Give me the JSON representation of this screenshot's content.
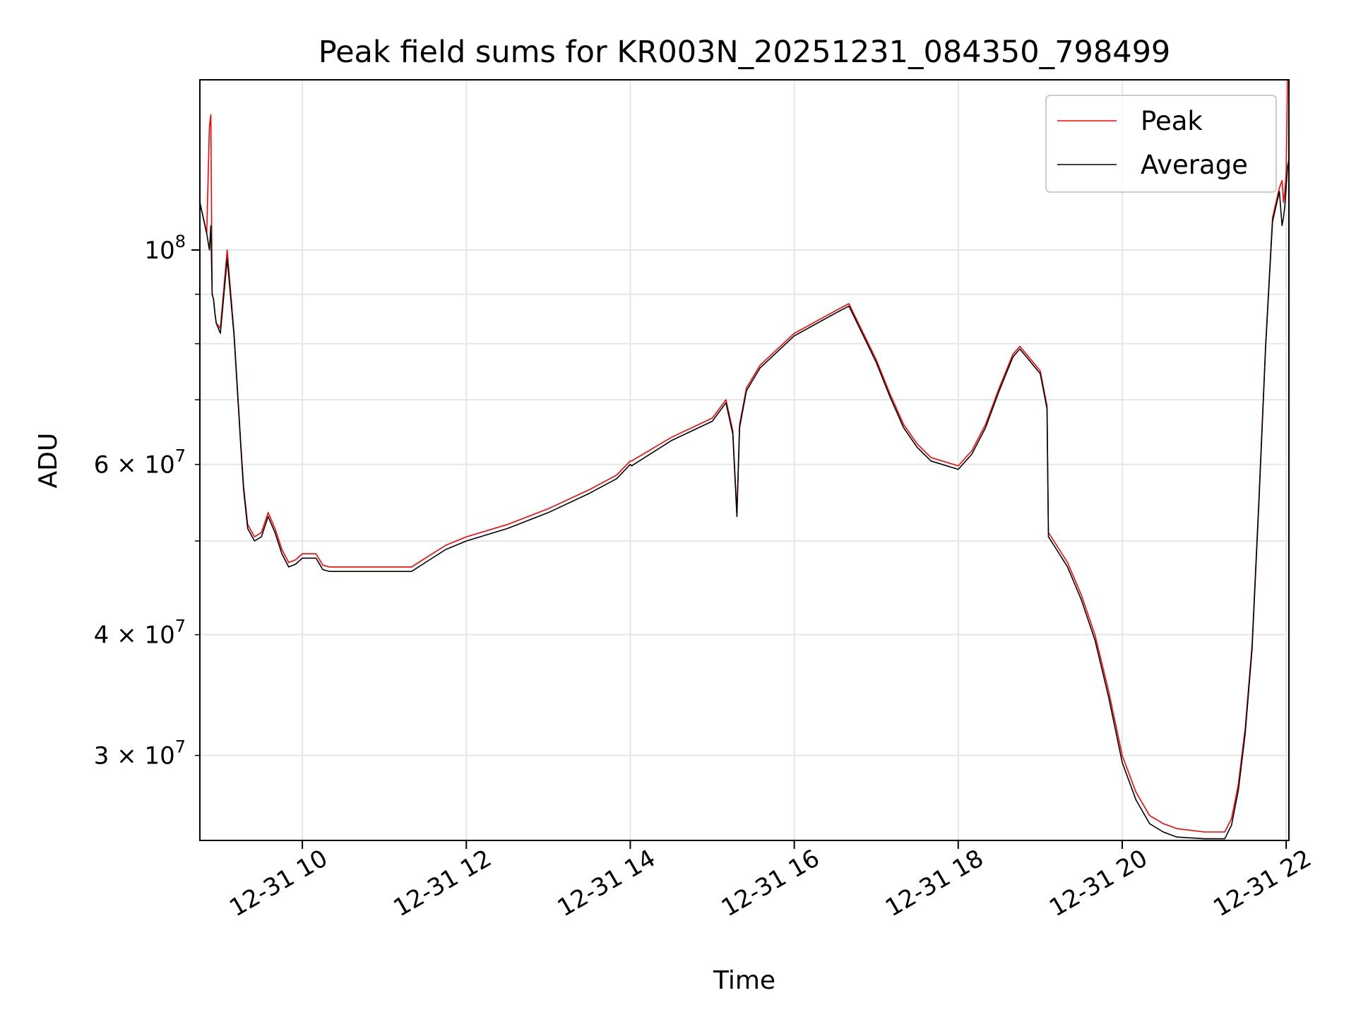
{
  "chart_data": {
    "type": "line",
    "title": "Peak field sums for KR003N_20251231_084350_798499",
    "xlabel": "Time",
    "ylabel": "ADU",
    "y_scale": "log",
    "xlim": [
      "2025-12-31 08:45",
      "2025-12-31 22:02"
    ],
    "ylim": [
      24500000,
      150000000
    ],
    "grid": true,
    "legend": "top-right",
    "x_ticks": [
      {
        "value": "2025-12-31 10:00",
        "label": "12-31 10"
      },
      {
        "value": "2025-12-31 12:00",
        "label": "12-31 12"
      },
      {
        "value": "2025-12-31 14:00",
        "label": "12-31 14"
      },
      {
        "value": "2025-12-31 16:00",
        "label": "12-31 16"
      },
      {
        "value": "2025-12-31 18:00",
        "label": "12-31 18"
      },
      {
        "value": "2025-12-31 20:00",
        "label": "12-31 20"
      },
      {
        "value": "2025-12-31 22:00",
        "label": "12-31 22"
      }
    ],
    "y_ticks_major": [
      {
        "value": 100000000,
        "base": "10",
        "exp": "8"
      }
    ],
    "y_ticks_minor_labeled": [
      {
        "value": 60000000,
        "mant": "6",
        "base": "10",
        "exp": "7"
      },
      {
        "value": 40000000,
        "mant": "4",
        "base": "10",
        "exp": "7"
      },
      {
        "value": 30000000,
        "mant": "3",
        "base": "10",
        "exp": "7"
      }
    ],
    "y_ticks_minor_unlabeled": [
      50000000,
      70000000,
      80000000,
      90000000
    ],
    "series": [
      {
        "name": "Peak",
        "color": "#ff0000",
        "x": [
          "2025-12-31 08:45",
          "2025-12-31 08:50",
          "2025-12-31 08:52",
          "2025-12-31 08:53",
          "2025-12-31 08:54",
          "2025-12-31 08:55",
          "2025-12-31 08:56",
          "2025-12-31 08:57",
          "2025-12-31 09:00",
          "2025-12-31 09:05",
          "2025-12-31 09:10",
          "2025-12-31 09:13",
          "2025-12-31 09:15",
          "2025-12-31 09:17",
          "2025-12-31 09:20",
          "2025-12-31 09:25",
          "2025-12-31 09:30",
          "2025-12-31 09:35",
          "2025-12-31 09:40",
          "2025-12-31 09:45",
          "2025-12-31 09:50",
          "2025-12-31 09:55",
          "2025-12-31 10:00",
          "2025-12-31 10:10",
          "2025-12-31 10:15",
          "2025-12-31 10:20",
          "2025-12-31 10:25",
          "2025-12-31 10:30",
          "2025-12-31 11:00",
          "2025-12-31 11:20",
          "2025-12-31 11:30",
          "2025-12-31 11:45",
          "2025-12-31 12:00",
          "2025-12-31 12:30",
          "2025-12-31 13:00",
          "2025-12-31 13:30",
          "2025-12-31 13:50",
          "2025-12-31 14:00",
          "2025-12-31 14:01",
          "2025-12-31 14:30",
          "2025-12-31 15:00",
          "2025-12-31 15:10",
          "2025-12-31 15:15",
          "2025-12-31 15:18",
          "2025-12-31 15:20",
          "2025-12-31 15:25",
          "2025-12-31 15:35",
          "2025-12-31 16:00",
          "2025-12-31 16:30",
          "2025-12-31 16:40",
          "2025-12-31 17:00",
          "2025-12-31 17:10",
          "2025-12-31 17:20",
          "2025-12-31 17:30",
          "2025-12-31 17:40",
          "2025-12-31 18:00",
          "2025-12-31 18:10",
          "2025-12-31 18:20",
          "2025-12-31 18:30",
          "2025-12-31 18:40",
          "2025-12-31 18:45",
          "2025-12-31 18:50",
          "2025-12-31 19:00",
          "2025-12-31 19:05",
          "2025-12-31 19:06",
          "2025-12-31 19:10",
          "2025-12-31 19:20",
          "2025-12-31 19:30",
          "2025-12-31 19:40",
          "2025-12-31 19:50",
          "2025-12-31 20:00",
          "2025-12-31 20:10",
          "2025-12-31 20:20",
          "2025-12-31 20:30",
          "2025-12-31 20:40",
          "2025-12-31 21:00",
          "2025-12-31 21:15",
          "2025-12-31 21:20",
          "2025-12-31 21:25",
          "2025-12-31 21:30",
          "2025-12-31 21:35",
          "2025-12-31 21:40",
          "2025-12-31 21:45",
          "2025-12-31 21:50",
          "2025-12-31 21:55",
          "2025-12-31 21:57",
          "2025-12-31 21:58",
          "2025-12-31 21:59",
          "2025-12-31 22:00",
          "2025-12-31 22:01",
          "2025-12-31 22:02"
        ],
        "values": [
          112000000,
          104000000,
          134000000,
          138000000,
          90000000,
          89000000,
          86000000,
          84000000,
          83000000,
          100000000,
          82000000,
          70000000,
          63000000,
          57000000,
          52000000,
          50500000,
          51000000,
          53500000,
          51500000,
          49000000,
          47500000,
          47800000,
          48500000,
          48500000,
          47200000,
          47000000,
          47000000,
          47000000,
          47000000,
          47000000,
          48000000,
          49500000,
          50500000,
          52000000,
          54000000,
          56500000,
          58500000,
          60500000,
          60500000,
          64000000,
          67000000,
          70000000,
          65000000,
          53500000,
          66000000,
          72000000,
          76000000,
          82000000,
          86500000,
          88000000,
          77000000,
          71000000,
          66000000,
          63000000,
          61000000,
          59800000,
          62000000,
          66000000,
          72000000,
          78000000,
          79500000,
          78000000,
          75000000,
          69000000,
          51000000,
          50000000,
          47500000,
          44000000,
          40000000,
          35000000,
          30000000,
          27500000,
          26000000,
          25500000,
          25200000,
          25000000,
          25000000,
          25800000,
          28000000,
          32000000,
          39000000,
          55000000,
          80000000,
          108000000,
          116000000,
          118000000,
          112000000,
          115000000,
          120000000,
          150000000,
          150000000
        ]
      },
      {
        "name": "Average",
        "color": "#000000",
        "x": [
          "2025-12-31 08:45",
          "2025-12-31 08:50",
          "2025-12-31 08:52",
          "2025-12-31 08:53",
          "2025-12-31 08:54",
          "2025-12-31 08:55",
          "2025-12-31 08:56",
          "2025-12-31 08:57",
          "2025-12-31 09:00",
          "2025-12-31 09:05",
          "2025-12-31 09:10",
          "2025-12-31 09:13",
          "2025-12-31 09:15",
          "2025-12-31 09:17",
          "2025-12-31 09:20",
          "2025-12-31 09:25",
          "2025-12-31 09:30",
          "2025-12-31 09:35",
          "2025-12-31 09:40",
          "2025-12-31 09:45",
          "2025-12-31 09:50",
          "2025-12-31 09:55",
          "2025-12-31 10:00",
          "2025-12-31 10:10",
          "2025-12-31 10:15",
          "2025-12-31 10:20",
          "2025-12-31 10:25",
          "2025-12-31 10:30",
          "2025-12-31 11:00",
          "2025-12-31 11:20",
          "2025-12-31 11:30",
          "2025-12-31 11:45",
          "2025-12-31 12:00",
          "2025-12-31 12:30",
          "2025-12-31 13:00",
          "2025-12-31 13:30",
          "2025-12-31 13:50",
          "2025-12-31 14:00",
          "2025-12-31 14:01",
          "2025-12-31 14:30",
          "2025-12-31 15:00",
          "2025-12-31 15:10",
          "2025-12-31 15:15",
          "2025-12-31 15:18",
          "2025-12-31 15:20",
          "2025-12-31 15:25",
          "2025-12-31 15:35",
          "2025-12-31 16:00",
          "2025-12-31 16:30",
          "2025-12-31 16:40",
          "2025-12-31 17:00",
          "2025-12-31 17:10",
          "2025-12-31 17:20",
          "2025-12-31 17:30",
          "2025-12-31 17:40",
          "2025-12-31 18:00",
          "2025-12-31 18:10",
          "2025-12-31 18:20",
          "2025-12-31 18:30",
          "2025-12-31 18:40",
          "2025-12-31 18:45",
          "2025-12-31 18:50",
          "2025-12-31 19:00",
          "2025-12-31 19:05",
          "2025-12-31 19:06",
          "2025-12-31 19:10",
          "2025-12-31 19:20",
          "2025-12-31 19:30",
          "2025-12-31 19:40",
          "2025-12-31 19:50",
          "2025-12-31 20:00",
          "2025-12-31 20:10",
          "2025-12-31 20:20",
          "2025-12-31 20:30",
          "2025-12-31 20:40",
          "2025-12-31 21:00",
          "2025-12-31 21:15",
          "2025-12-31 21:20",
          "2025-12-31 21:25",
          "2025-12-31 21:30",
          "2025-12-31 21:35",
          "2025-12-31 21:40",
          "2025-12-31 21:45",
          "2025-12-31 21:50",
          "2025-12-31 21:55",
          "2025-12-31 21:57",
          "2025-12-31 21:58",
          "2025-12-31 21:59",
          "2025-12-31 22:00",
          "2025-12-31 22:01",
          "2025-12-31 22:02"
        ],
        "values": [
          112000000,
          104000000,
          100000000,
          106000000,
          90000000,
          89000000,
          86000000,
          84000000,
          82000000,
          98000000,
          81500000,
          69500000,
          62500000,
          56500000,
          51500000,
          50000000,
          50500000,
          53000000,
          51000000,
          48500000,
          47000000,
          47300000,
          48000000,
          48000000,
          46700000,
          46500000,
          46500000,
          46500000,
          46500000,
          46500000,
          47500000,
          49000000,
          50000000,
          51500000,
          53500000,
          56000000,
          58000000,
          60000000,
          59800000,
          63500000,
          66500000,
          69500000,
          64500000,
          53000000,
          65500000,
          71500000,
          75500000,
          81500000,
          86000000,
          87500000,
          76500000,
          70500000,
          65500000,
          62500000,
          60500000,
          59300000,
          61500000,
          65500000,
          71500000,
          77500000,
          79000000,
          77500000,
          74500000,
          68500000,
          50500000,
          49500000,
          47000000,
          43500000,
          39500000,
          34500000,
          29500000,
          27000000,
          25500000,
          25000000,
          24700000,
          24600000,
          24600000,
          25400000,
          27600000,
          31600000,
          38600000,
          54500000,
          79500000,
          107000000,
          115000000,
          106000000,
          108000000,
          111000000,
          116000000,
          122000000,
          124000000
        ]
      }
    ]
  }
}
